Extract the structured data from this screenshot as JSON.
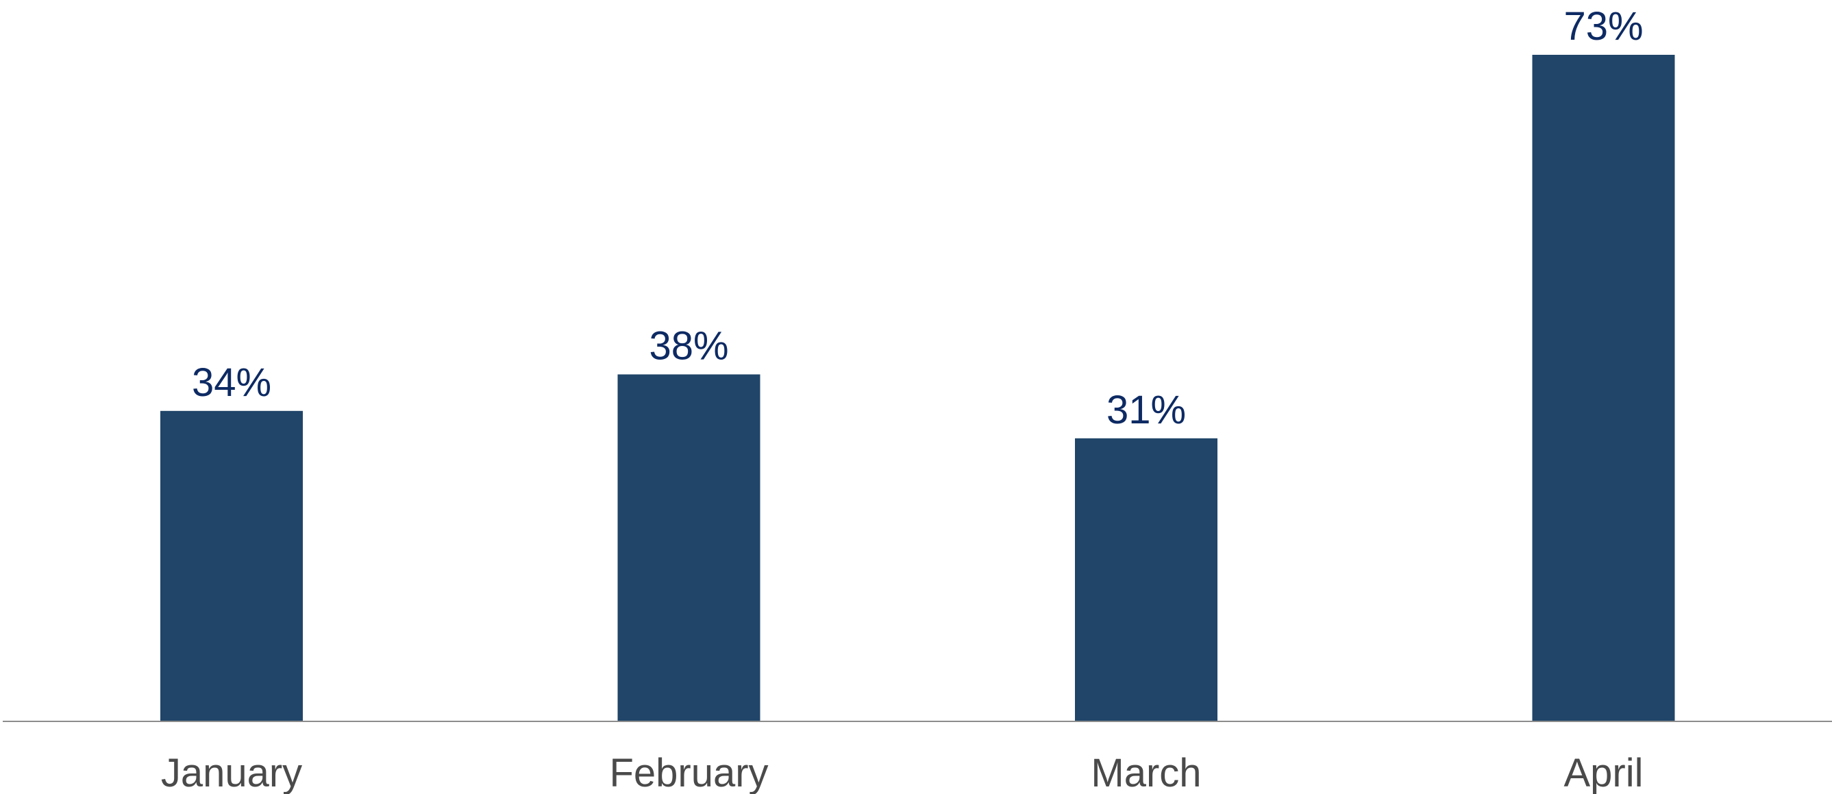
{
  "chart_data": {
    "type": "bar",
    "categories": [
      "January",
      "February",
      "March",
      "April"
    ],
    "values": [
      34,
      38,
      31,
      73
    ],
    "value_labels": [
      "34%",
      "38%",
      "31%",
      "73%"
    ],
    "title": "",
    "xlabel": "",
    "ylabel": "",
    "ylim": [
      0,
      73
    ],
    "grid": false,
    "legend": "none"
  },
  "colors": {
    "bar": "#204569",
    "value_label": "#0d2a63",
    "category_label": "#4a4a4a",
    "axis": "#8c8c8c",
    "background": "#ffffff"
  }
}
